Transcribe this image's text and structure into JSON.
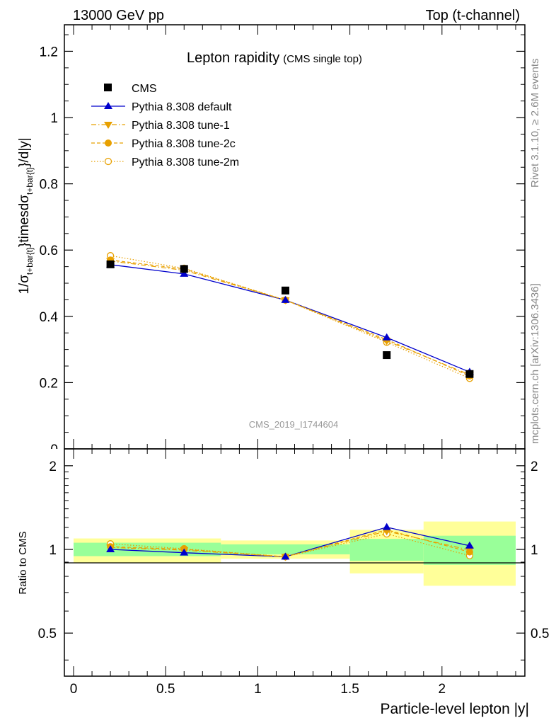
{
  "header": {
    "left": "13000 GeV pp",
    "right": "Top (t-channel)"
  },
  "side_text": {
    "rivet": "Rivet 3.1.10, ≥ 2.6M events",
    "mcplots": "mcplots.cern.ch [arXiv:1306.3436]"
  },
  "chart_data": [
    {
      "type": "line",
      "panel": "main",
      "title": "Lepton rapidity",
      "subtitle": "(CMS single top)",
      "ylabel_main": "1/σ",
      "ylabel_sub1": "t+bar{t}",
      "ylabel_mid": "}timesdσ",
      "ylabel_sub2": "t+bar{t}",
      "ylabel_end": "}/d|y|",
      "analysis_id": "CMS_2019_I1744604",
      "xlim": [
        -0.05,
        2.45
      ],
      "ylim": [
        0,
        1.28
      ],
      "yticks": [
        "0",
        "0.2",
        "0.4",
        "0.6",
        "0.8",
        "1",
        "1.2"
      ],
      "x": [
        0.2,
        0.6,
        1.15,
        1.7,
        2.15
      ],
      "legend_position": "top-left",
      "series": [
        {
          "name": "CMS",
          "role": "data",
          "color": "#000000",
          "marker": "square",
          "values": [
            0.557,
            0.543,
            0.478,
            0.283,
            0.226
          ]
        },
        {
          "name": "Pythia 8.308 default",
          "color": "#0000cc",
          "marker": "triangle-up",
          "line": "solid",
          "values": [
            0.556,
            0.528,
            0.449,
            0.336,
            0.232
          ]
        },
        {
          "name": "Pythia 8.308 tune-1",
          "color": "#e8a000",
          "marker": "triangle-down",
          "line": "dashdot",
          "values": [
            0.567,
            0.539,
            0.449,
            0.326,
            0.224
          ]
        },
        {
          "name": "Pythia 8.308 tune-2c",
          "color": "#e8a000",
          "marker": "circle-filled",
          "line": "dashed",
          "values": [
            0.57,
            0.543,
            0.449,
            0.33,
            0.22
          ]
        },
        {
          "name": "Pythia 8.308 tune-2m",
          "color": "#e8a000",
          "marker": "circle-open",
          "line": "dotted",
          "values": [
            0.583,
            0.545,
            0.449,
            0.322,
            0.213
          ]
        }
      ]
    },
    {
      "type": "line",
      "panel": "ratio",
      "ylabel": "Ratio to CMS",
      "xlabel": "Particle-level lepton |y|",
      "xlim": [
        -0.05,
        2.45
      ],
      "ylim": [
        0.35,
        2.3
      ],
      "yticks": [
        "0.5",
        "1",
        "2"
      ],
      "xticks": [
        "0",
        "0.5",
        "1",
        "1.5",
        "2"
      ],
      "uncertainty_bins": [
        {
          "x_low": 0.0,
          "x_high": 0.8,
          "stat_low": 0.946,
          "stat_high": 1.057,
          "total_low": 0.892,
          "total_high": 1.095
        },
        {
          "x_low": 0.8,
          "x_high": 1.5,
          "stat_low": 0.96,
          "stat_high": 1.043,
          "total_low": 0.926,
          "total_high": 1.077
        },
        {
          "x_low": 1.5,
          "x_high": 1.9,
          "stat_low": 0.909,
          "stat_high": 1.091,
          "total_low": 0.82,
          "total_high": 1.176
        },
        {
          "x_low": 1.9,
          "x_high": 2.4,
          "stat_low": 0.88,
          "stat_high": 1.12,
          "total_low": 0.74,
          "total_high": 1.26
        }
      ],
      "x": [
        0.2,
        0.6,
        1.15,
        1.7,
        2.15
      ],
      "series": [
        {
          "name": "Pythia 8.308 default",
          "color": "#0000cc",
          "marker": "triangle-up",
          "line": "solid",
          "values": [
            1.0,
            0.973,
            0.941,
            1.202,
            1.031
          ]
        },
        {
          "name": "Pythia 8.308 tune-1",
          "color": "#e8a000",
          "marker": "triangle-down",
          "line": "dashdot",
          "values": [
            1.016,
            0.994,
            0.941,
            1.163,
            0.995
          ]
        },
        {
          "name": "Pythia 8.308 tune-2c",
          "color": "#e8a000",
          "marker": "circle-filled",
          "line": "dashed",
          "values": [
            1.023,
            1.001,
            0.941,
            1.176,
            0.979
          ]
        },
        {
          "name": "Pythia 8.308 tune-2m",
          "color": "#e8a000",
          "marker": "circle-open",
          "line": "dotted",
          "values": [
            1.047,
            1.006,
            0.941,
            1.138,
            0.95
          ]
        }
      ]
    }
  ]
}
